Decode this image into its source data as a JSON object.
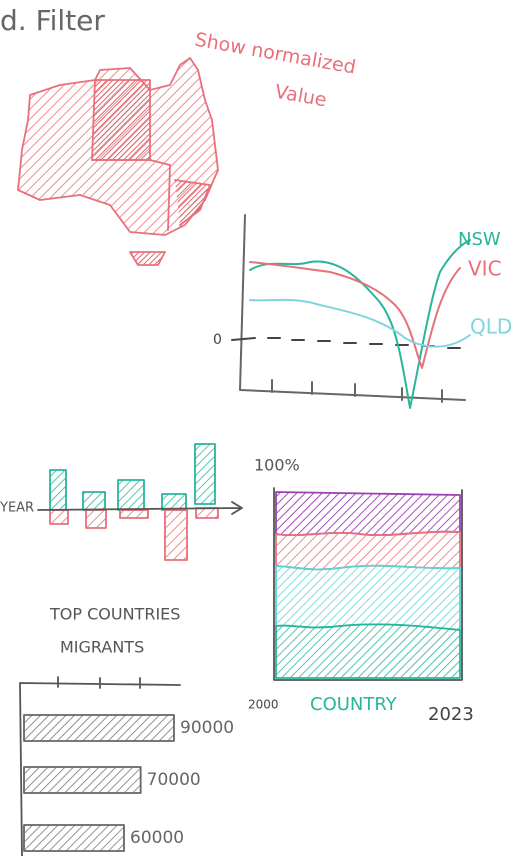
{
  "header": {
    "title": "d. Filter"
  },
  "map": {
    "annotation_line1": "Show normalized",
    "annotation_line2": "Value"
  },
  "line_chart": {
    "zero_label": "0",
    "series": [
      "NSW",
      "VIC",
      "QLD"
    ]
  },
  "diverging_bars": {
    "axis_label": "YEAR"
  },
  "stacked_area": {
    "top_label": "100%",
    "x_start": "2000",
    "x_label": "COUNTRY",
    "x_end": "2023"
  },
  "top_countries": {
    "title_line1": "TOP COUNTRIES",
    "title_line2": "MIGRANTS",
    "values": [
      90000,
      70000,
      60000
    ]
  }
}
